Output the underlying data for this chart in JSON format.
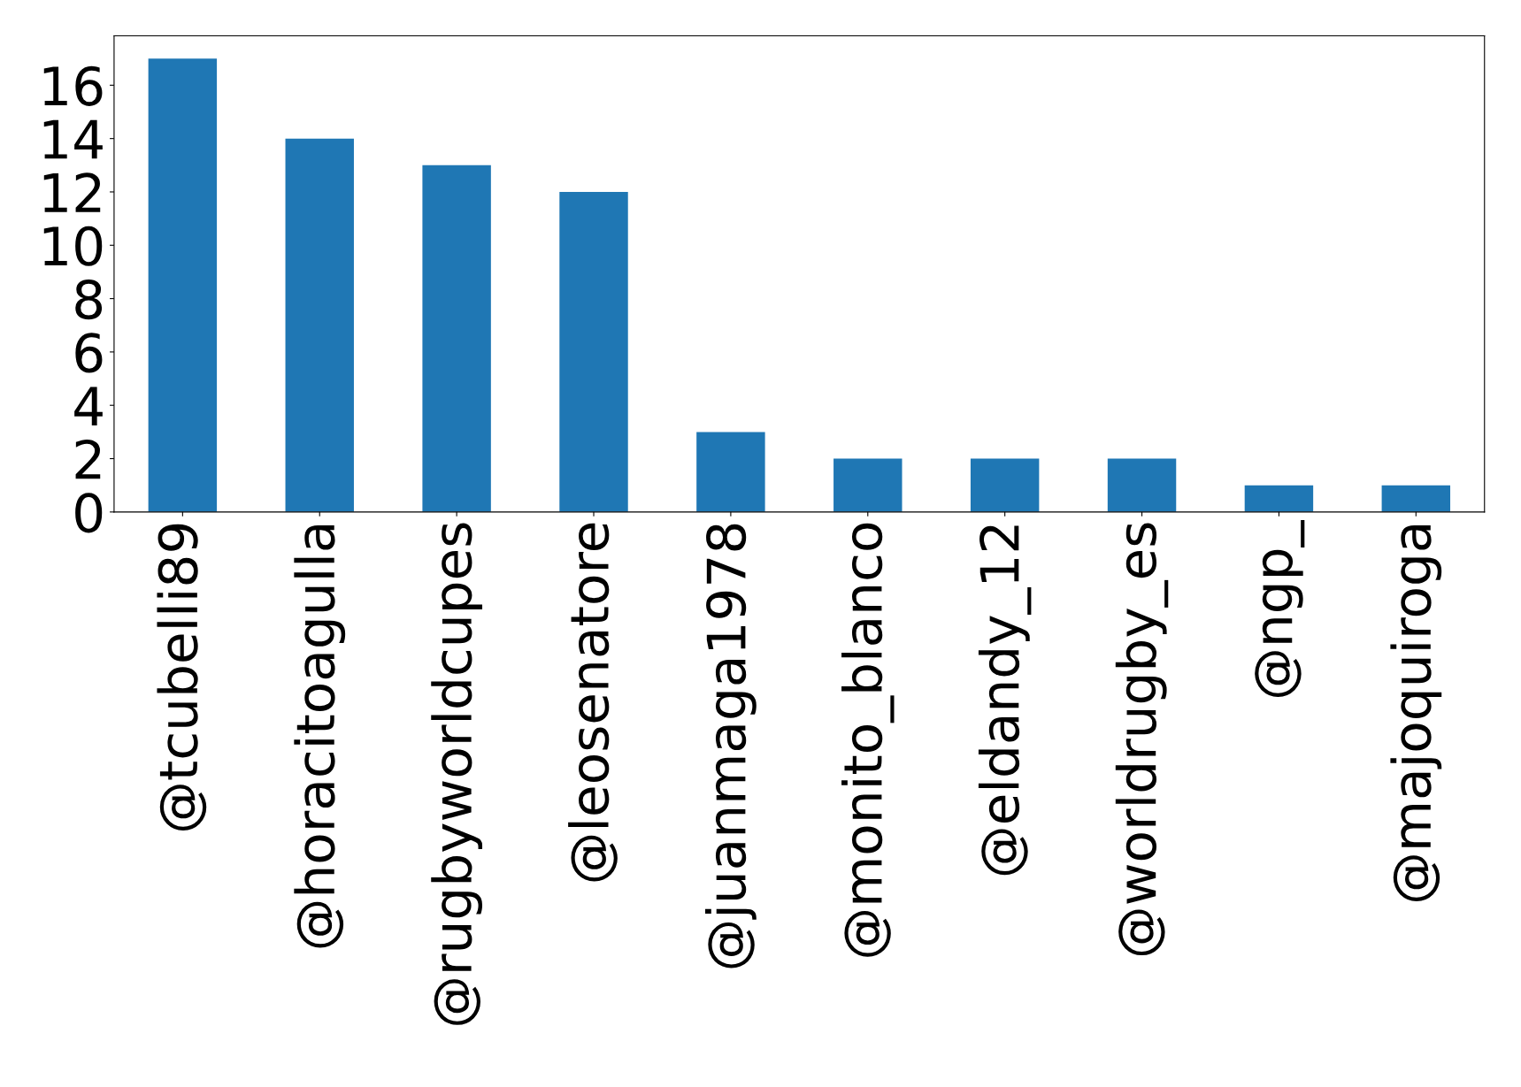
{
  "chart_data": {
    "type": "bar",
    "categories": [
      "@tcubelli89",
      "@horacitoagulla",
      "@rugbyworldcupes",
      "@leosenatore",
      "@juanmaga1978",
      "@monito_blanco",
      "@eldandy_12",
      "@worldrugby_es",
      "@ngp_",
      "@majoquiroga"
    ],
    "values": [
      17,
      14,
      13,
      12,
      3,
      2,
      2,
      2,
      1,
      1
    ],
    "color": "#1f77b4",
    "ylim": [
      0,
      17.85
    ],
    "yticks": [
      0,
      2,
      4,
      6,
      8,
      10,
      12,
      14,
      16
    ],
    "grid": false,
    "legend": false
  }
}
